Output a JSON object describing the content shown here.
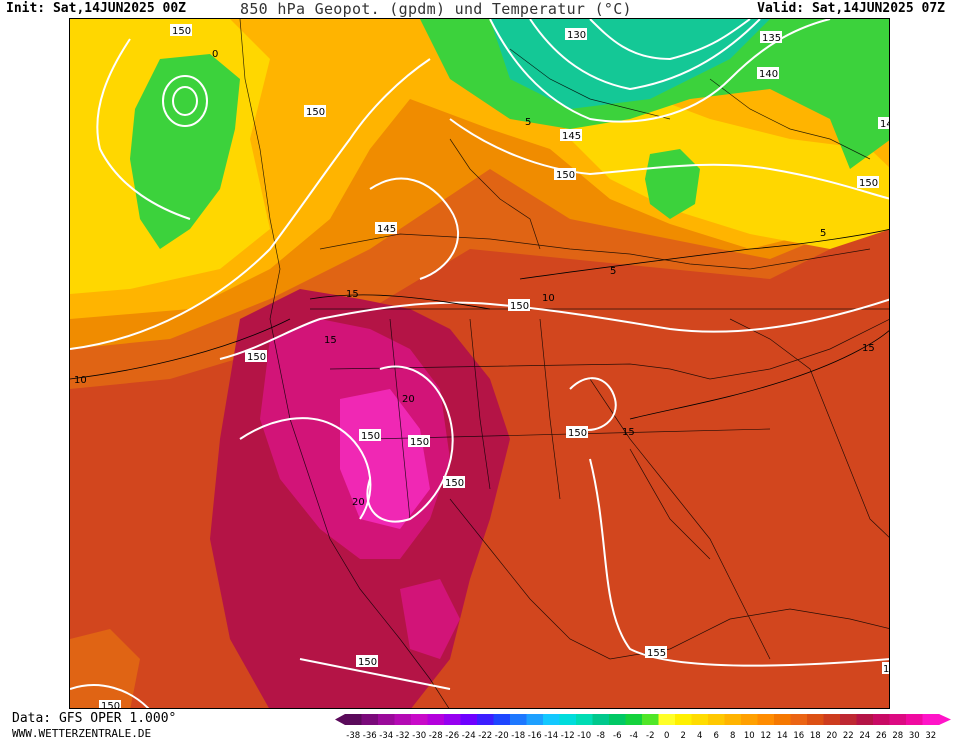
{
  "header": {
    "init": "Init: Sat,14JUN2025 00Z",
    "title": "850 hPa Geopot. (gpdm) und Temperatur (°C)",
    "valid": "Valid: Sat,14JUN2025 07Z"
  },
  "footer": {
    "data": "Data: GFS OPER 1.000°",
    "website": "WWW.WETTERZENTRALE.DE"
  },
  "legend": {
    "ticks": [
      "-38",
      "-36",
      "-34",
      "-32",
      "-30",
      "-28",
      "-26",
      "-24",
      "-22",
      "-20",
      "-18",
      "-16",
      "-14",
      "-12",
      "-10",
      "-8",
      "-6",
      "-4",
      "-2",
      "0",
      "2",
      "4",
      "6",
      "8",
      "10",
      "12",
      "14",
      "16",
      "18",
      "20",
      "22",
      "24",
      "26",
      "28",
      "30",
      "32"
    ],
    "colors": [
      "#5a0a5a",
      "#7a0a7a",
      "#9a0a9a",
      "#b40ab4",
      "#c80ac8",
      "#b400dc",
      "#9600f0",
      "#6e00ff",
      "#3c1eff",
      "#1e46ff",
      "#1e78ff",
      "#1ea0ff",
      "#14c8ff",
      "#00dcdc",
      "#00dcb4",
      "#00c88c",
      "#00c864",
      "#14d23c",
      "#50e628",
      "#ffff28",
      "#fff000",
      "#ffdc00",
      "#ffc800",
      "#ffb400",
      "#ffa000",
      "#ff8c00",
      "#f57800",
      "#eb6414",
      "#dc5014",
      "#cd3c1e",
      "#be2832",
      "#b41446",
      "#c80a64",
      "#dc0a82",
      "#f00aa0",
      "#ff14c8"
    ]
  },
  "map": {
    "geopotential_labels": [
      "150",
      "130",
      "135",
      "140",
      "14",
      "145",
      "150",
      "150",
      "145",
      "150",
      "150",
      "150",
      "150",
      "150",
      "150",
      "150",
      "150",
      "155",
      "1",
      "150"
    ],
    "temperature_labels": [
      "0",
      "5",
      "5",
      "10",
      "15",
      "15",
      "20",
      "20",
      "15",
      "10",
      "5",
      "15"
    ],
    "colors": {
      "green": "#3cd23c",
      "yellow": "#ffd700",
      "yellow_orange": "#ffb400",
      "orange": "#f08c00",
      "dark_orange": "#e06414",
      "red_orange": "#d2461e",
      "red": "#be2832",
      "crimson": "#b41446",
      "magenta": "#d21478",
      "pink": "#f028b4",
      "teal": "#14c896"
    }
  }
}
